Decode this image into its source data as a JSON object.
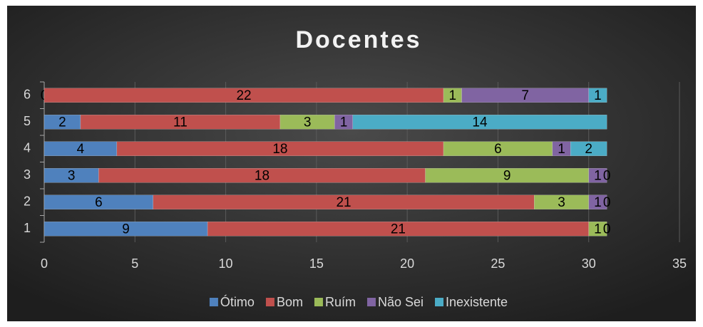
{
  "chart_data": {
    "type": "hbar_stacked",
    "title": "Docentes",
    "categories": [
      "1",
      "2",
      "3",
      "4",
      "5",
      "6"
    ],
    "series": [
      {
        "name": "Ótimo",
        "color": "#4f81bd",
        "values": [
          9,
          6,
          3,
          4,
          2,
          0
        ]
      },
      {
        "name": "Bom",
        "color": "#c0504d",
        "values": [
          21,
          21,
          18,
          18,
          11,
          22
        ]
      },
      {
        "name": "Ruím",
        "color": "#9bbb59",
        "values": [
          1,
          3,
          9,
          6,
          3,
          1
        ]
      },
      {
        "name": "Não Sei",
        "color": "#8064a2",
        "values": [
          0,
          1,
          1,
          1,
          1,
          7
        ]
      },
      {
        "name": "Inexistente",
        "color": "#4bacc6",
        "values": [
          0,
          0,
          0,
          2,
          14,
          1
        ]
      }
    ],
    "xlim": [
      0,
      35
    ],
    "xticks": [
      0,
      5,
      10,
      15,
      20,
      25,
      30,
      35
    ],
    "grid": true,
    "legend": "bottom"
  }
}
